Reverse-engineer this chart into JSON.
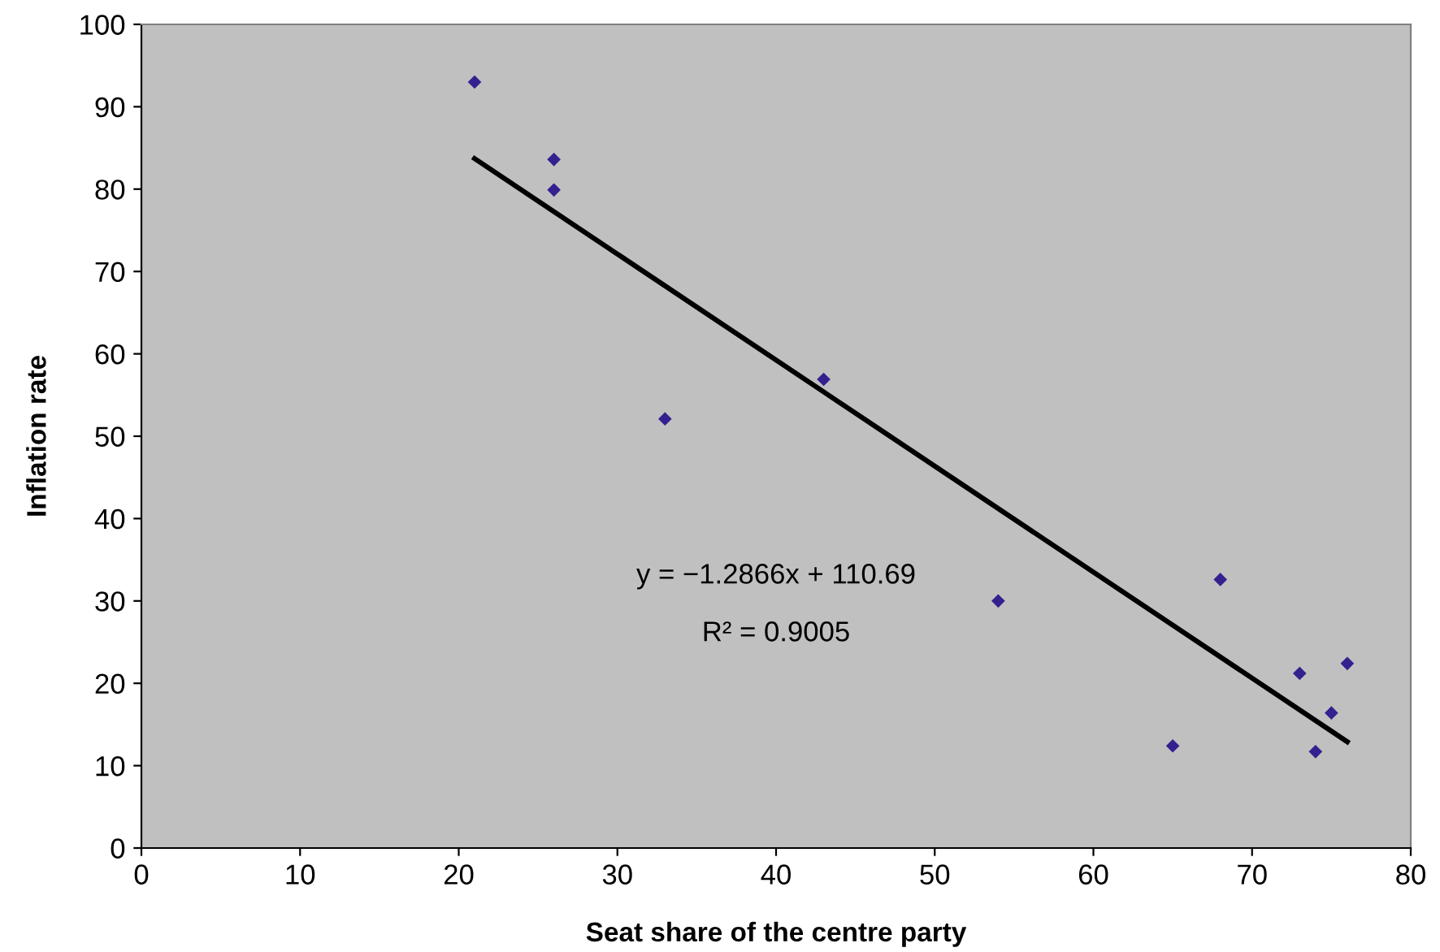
{
  "chart_data": {
    "type": "scatter",
    "xlabel": "Seat share of the centre party",
    "ylabel": "Inflation rate",
    "xlim": [
      0,
      80
    ],
    "ylim": [
      0,
      100
    ],
    "xticks": [
      0,
      10,
      20,
      30,
      40,
      50,
      60,
      70,
      80
    ],
    "yticks": [
      0,
      10,
      20,
      30,
      40,
      50,
      60,
      70,
      80,
      90,
      100
    ],
    "grid": false,
    "legend": false,
    "series": [
      {
        "color": "#35208f",
        "marker": "diamond",
        "x": [
          21,
          26,
          26,
          33,
          43,
          54,
          65,
          68,
          73,
          75,
          74,
          76
        ],
        "values": [
          93,
          83.6,
          79.9,
          52.1,
          56.9,
          30.0,
          12.4,
          32.6,
          21.2,
          16.4,
          11.7,
          22.4
        ]
      },
      {
        "type": "line",
        "color": "#000000",
        "marker": "none",
        "line_style": "solid",
        "x": [
          21,
          76
        ],
        "values": [
          83.7,
          12.9
        ]
      }
    ],
    "annotations": [
      "y = −1.2866x + 110.69",
      "R² = 0.9005"
    ]
  }
}
